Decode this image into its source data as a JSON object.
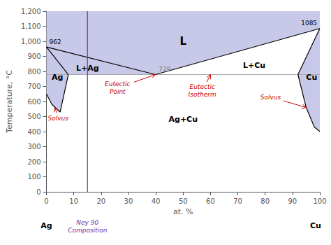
{
  "chart_data": {
    "type": "phase_diagram",
    "xlabel": "at. %",
    "ylabel": "Temperature, °C",
    "xlim": [
      0,
      100
    ],
    "ylim": [
      0,
      1200
    ],
    "xticks": [
      0,
      10,
      20,
      30,
      40,
      50,
      60,
      70,
      80,
      90,
      100
    ],
    "yticks": [
      0,
      100,
      200,
      300,
      400,
      500,
      600,
      700,
      800,
      900,
      1000,
      1100,
      1200
    ],
    "grid": false,
    "region_color": "#c8c8e8",
    "regions": [
      {
        "x": [
          0,
          0,
          100,
          100,
          39.9,
          0
        ],
        "y": [
          962,
          1200,
          1200,
          1085,
          779,
          962
        ]
      },
      {
        "x": [
          0,
          8,
          39.9,
          0
        ],
        "y": [
          962,
          779,
          779,
          962
        ]
      },
      {
        "x": [
          92,
          100,
          100,
          39.9
        ],
        "y": [
          779,
          1085,
          779,
          779
        ]
      },
      {
        "x": [
          0,
          0,
          0,
          8,
          8,
          5,
          2,
          0
        ],
        "y": [
          0,
          962,
          962,
          779,
          779,
          530,
          580,
          650
        ]
      },
      {
        "x": [
          92,
          100,
          100,
          100,
          100,
          98,
          95,
          92
        ],
        "y": [
          779,
          1085,
          1085,
          0,
          400,
          430,
          560,
          779
        ]
      }
    ],
    "boundary_color": "#000000",
    "boundaries": [
      {
        "x": [
          0,
          39.9
        ],
        "y": [
          962,
          779
        ]
      },
      {
        "x": [
          39.9,
          100
        ],
        "y": [
          779,
          1085
        ]
      },
      {
        "x": [
          0,
          8
        ],
        "y": [
          962,
          779
        ]
      },
      {
        "x": [
          92,
          100
        ],
        "y": [
          779,
          1085
        ]
      },
      {
        "x": [
          0,
          2,
          5,
          8
        ],
        "y": [
          650,
          580,
          530,
          779
        ]
      },
      {
        "x": [
          92,
          95,
          98,
          100
        ],
        "y": [
          779,
          560,
          430,
          400
        ]
      }
    ],
    "hlines": [
      {
        "y": 779,
        "color": "#aaaaaa"
      }
    ],
    "vlines": [
      {
        "x": 15,
        "color": "#7030a0",
        "label": "Ney 90\nComposition"
      }
    ],
    "label_color": "#000000",
    "region_labels": [
      {
        "text": "Ag",
        "x": 4,
        "y": 760
      },
      {
        "text": "L+Ag",
        "x": 15,
        "y": 820
      },
      {
        "text": "L",
        "x": 50,
        "y": 1000
      },
      {
        "text": "L+Cu",
        "x": 76,
        "y": 840
      },
      {
        "text": "Cu",
        "x": 97,
        "y": 760
      },
      {
        "text": "Ag+Cu",
        "x": 50,
        "y": 480
      }
    ],
    "temperature_labels": [
      {
        "text": "962",
        "x": 1,
        "y": 962,
        "color": "#000000"
      },
      {
        "text": "1085",
        "x": 99,
        "y": 1085,
        "color": "#000000"
      },
      {
        "text": "779",
        "x": 41,
        "y": 779,
        "color": "#808080"
      }
    ],
    "annotation_color": "#cc0000",
    "annotations": [
      {
        "text": "Solvus",
        "x": 3,
        "y": 560,
        "text_x": 0.5,
        "text_y": 490
      },
      {
        "text": "Eutectic\nPoint",
        "x": 39.9,
        "y": 779,
        "text_x": 26,
        "text_y": 690
      },
      {
        "text": "Eutectic\nIsotherm",
        "x": 60,
        "y": 779,
        "text_x": 57,
        "text_y": 670
      },
      {
        "text": "Solvus",
        "x": 95,
        "y": 560,
        "text_x": 82,
        "text_y": 630
      }
    ],
    "axis_end_labels": {
      "left": "Ag",
      "right": "Cu"
    }
  }
}
